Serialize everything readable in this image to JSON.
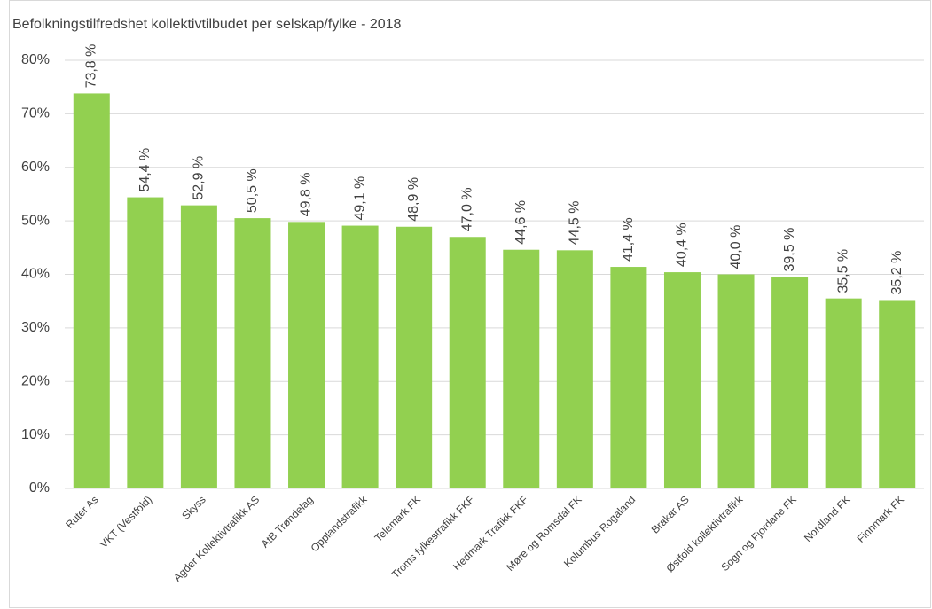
{
  "chart_data": {
    "type": "bar",
    "title": "Befolkningstilfredshet kollektivtilbudet per selskap/fylke - 2018",
    "categories": [
      "Ruter As",
      "VKT (Vestfold)",
      "Skyss",
      "Agder Kollektivtrafikk AS",
      "AtB Trøndelag",
      "Opplandstrafikk",
      "Telemark FK",
      "Troms fylkestrafikk FKF",
      "Hedmark Trafikk FKF",
      "Møre og Romsdal FK",
      "Kolumbus Rogaland",
      "Brakar AS",
      "Østfold kollektivtrafikk",
      "Sogn og Fjordane FK",
      "Nordland FK",
      "Finnmark FK"
    ],
    "values": [
      73.8,
      54.4,
      52.9,
      50.5,
      49.8,
      49.1,
      48.9,
      47.0,
      44.6,
      44.5,
      41.4,
      40.4,
      40.0,
      39.5,
      35.5,
      35.2
    ],
    "value_labels": [
      "73,8 %",
      "54,4 %",
      "52,9 %",
      "50,5 %",
      "49,8 %",
      "49,1 %",
      "48,9 %",
      "47,0 %",
      "44,6 %",
      "44,5 %",
      "41,4 %",
      "40,4 %",
      "40,0 %",
      "39,5 %",
      "35,5 %",
      "35,2 %"
    ],
    "color": "#92d050",
    "ylim": [
      0,
      80
    ],
    "yticks": [
      {
        "value": 0,
        "label": "0%"
      },
      {
        "value": 10,
        "label": "10%"
      },
      {
        "value": 20,
        "label": "20%"
      },
      {
        "value": 30,
        "label": "30%"
      },
      {
        "value": 40,
        "label": "40%"
      },
      {
        "value": 50,
        "label": "50%"
      },
      {
        "value": 60,
        "label": "60%"
      },
      {
        "value": 70,
        "label": "70%"
      },
      {
        "value": 80,
        "label": "80%"
      }
    ],
    "grid": true
  }
}
